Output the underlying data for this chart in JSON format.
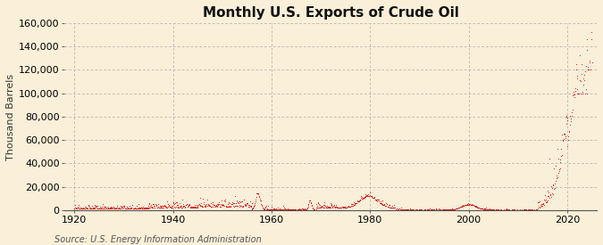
{
  "title": "Monthly U.S. Exports of Crude Oil",
  "ylabel": "Thousand Barrels",
  "source": "Source: U.S. Energy Information Administration",
  "background_color": "#faefd8",
  "plot_bg_color": "#faefd8",
  "line_color": "#cc0000",
  "grid_color": "#aaaaaa",
  "ylim": [
    0,
    160000
  ],
  "yticks": [
    0,
    20000,
    40000,
    60000,
    80000,
    100000,
    120000,
    140000,
    160000
  ],
  "xticks": [
    1920,
    1940,
    1960,
    1980,
    2000,
    2020
  ],
  "xlim": [
    1918,
    2026
  ],
  "title_fontsize": 11,
  "label_fontsize": 8,
  "tick_fontsize": 8,
  "source_fontsize": 7
}
